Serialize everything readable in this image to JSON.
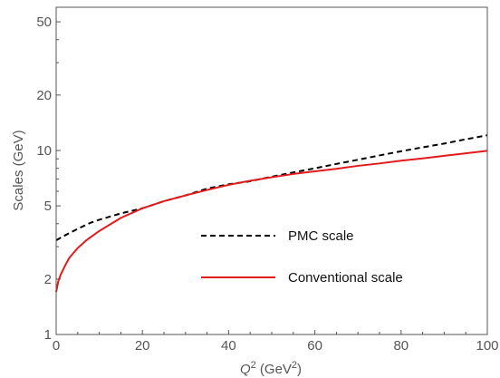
{
  "chart_data": {
    "type": "line",
    "xlabel": {
      "main": "Q",
      "sup1": "2",
      "units_open": " (GeV",
      "sup2": "2",
      "units_close": ")"
    },
    "ylabel": "Scales (GeV)",
    "x_ticks": [
      0,
      20,
      40,
      60,
      80,
      100
    ],
    "y_ticks": [
      1,
      2,
      5,
      10,
      20,
      50
    ],
    "xlim": [
      0,
      100
    ],
    "ylim": [
      1,
      60
    ],
    "y_scale": "log",
    "grid": false,
    "legend_position": "center-right",
    "series": [
      {
        "name": "PMC scale",
        "style": "dashed",
        "color": "#000000",
        "x": [
          0,
          1,
          2,
          3,
          5,
          8,
          10,
          15,
          20,
          25,
          30,
          35,
          40,
          45,
          50,
          55,
          60,
          65,
          70,
          75,
          80,
          85,
          90,
          95,
          100
        ],
        "y": [
          3.25,
          3.35,
          3.45,
          3.55,
          3.75,
          4.05,
          4.2,
          4.55,
          4.85,
          5.3,
          5.7,
          6.2,
          6.55,
          6.8,
          7.2,
          7.6,
          8.0,
          8.45,
          8.9,
          9.4,
          9.9,
          10.4,
          10.9,
          11.5,
          12.1
        ]
      },
      {
        "name": "Conventional scale",
        "style": "solid",
        "color": "#e31a1c",
        "x": [
          0,
          0.5,
          1,
          2,
          3,
          5,
          7,
          10,
          15,
          20,
          25,
          30,
          35,
          40,
          45,
          50,
          55,
          60,
          65,
          70,
          75,
          80,
          85,
          90,
          95,
          100
        ],
        "y": [
          1.7,
          1.95,
          2.1,
          2.35,
          2.6,
          2.95,
          3.25,
          3.65,
          4.3,
          4.85,
          5.3,
          5.7,
          6.1,
          6.5,
          6.85,
          7.15,
          7.45,
          7.7,
          7.95,
          8.25,
          8.5,
          8.8,
          9.05,
          9.35,
          9.65,
          9.95
        ]
      }
    ]
  }
}
